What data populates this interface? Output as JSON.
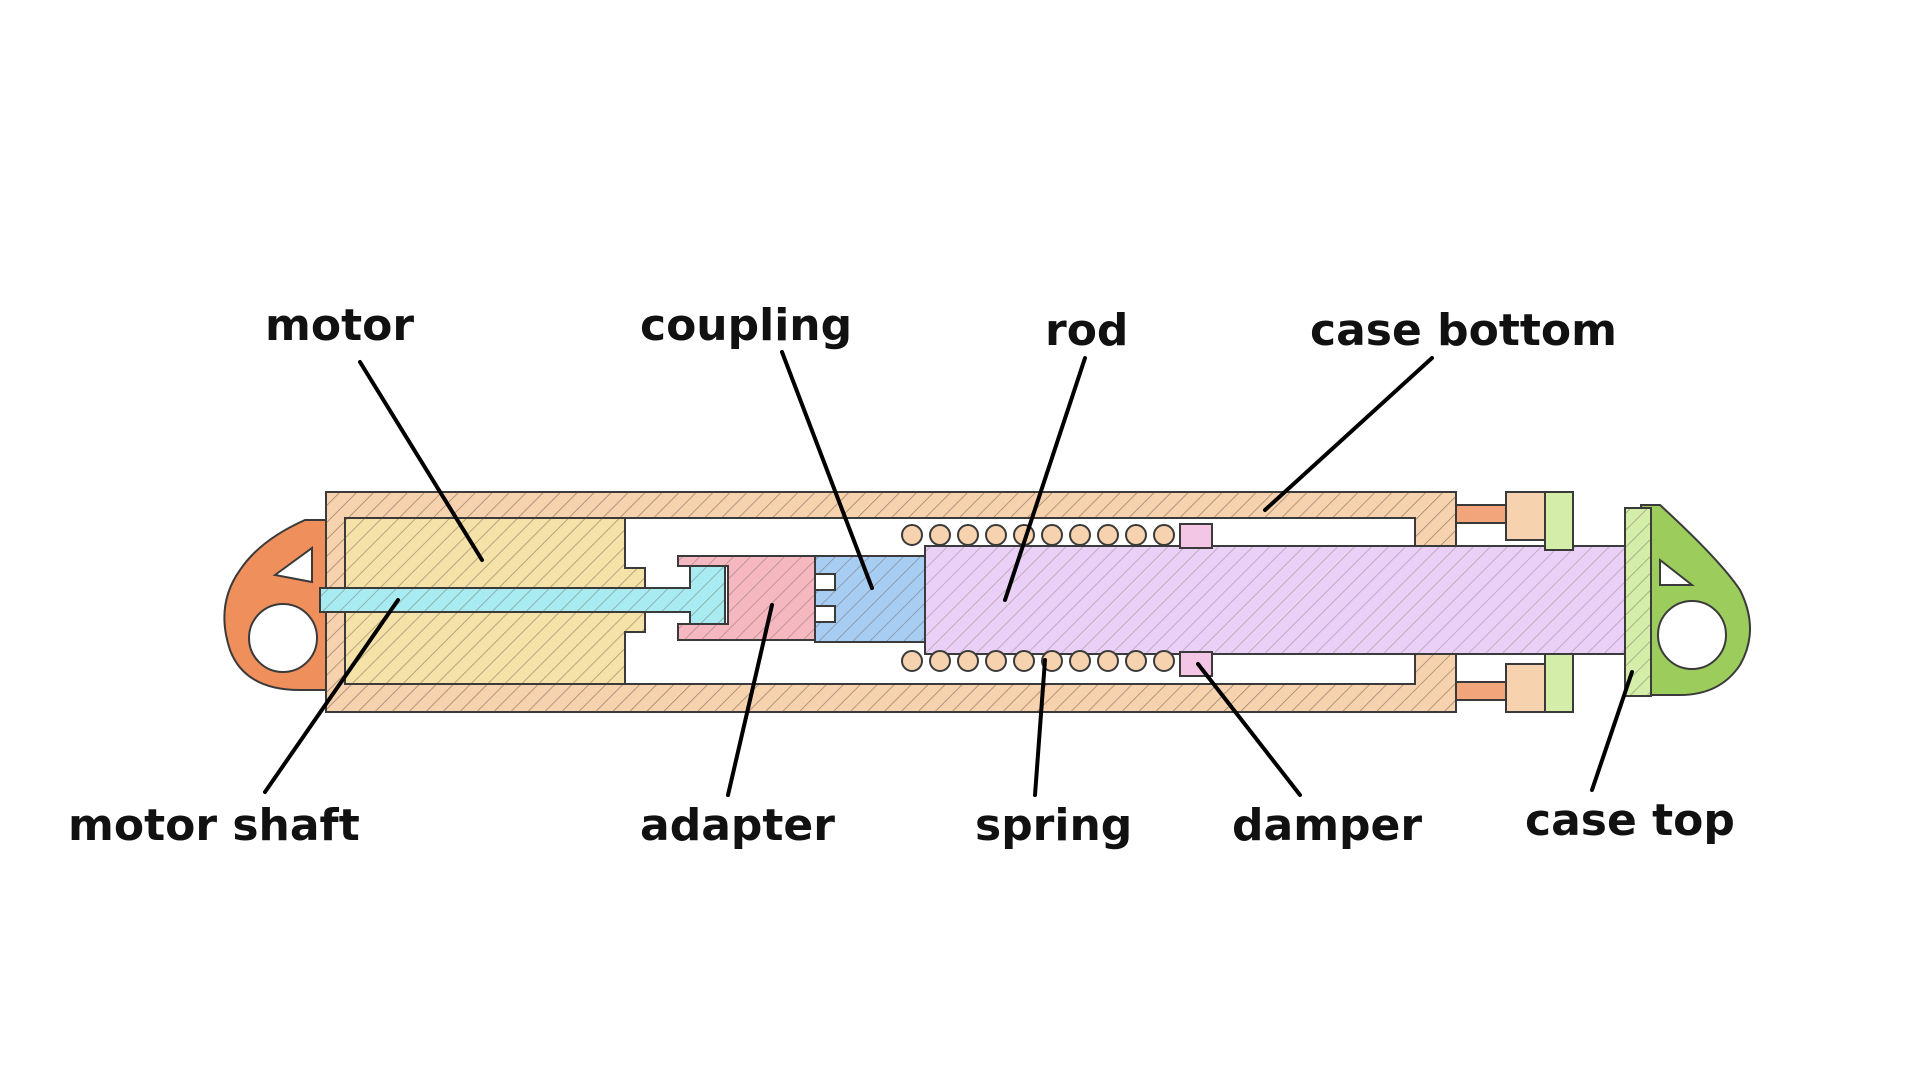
{
  "labels": {
    "motor": "motor",
    "coupling": "coupling",
    "rod": "rod",
    "case_bottom": "case bottom",
    "motor_shaft": "motor shaft",
    "adapter": "adapter",
    "spring": "spring",
    "damper": "damper",
    "case_top": "case top"
  },
  "colors": {
    "case_bottom": "#f7d2ae",
    "motor": "#f5e2a8",
    "motor_shaft": "#a8ecf2",
    "adapter": "#f6b8c0",
    "coupling": "#a8cdf3",
    "rod": "#ead0f6",
    "damper": "#f4c6e6",
    "case_top": "#d4eeaa",
    "left_mount": "#ee8f5c",
    "right_mount": "#9ccc5c",
    "hatch": "#6b5a4a"
  }
}
